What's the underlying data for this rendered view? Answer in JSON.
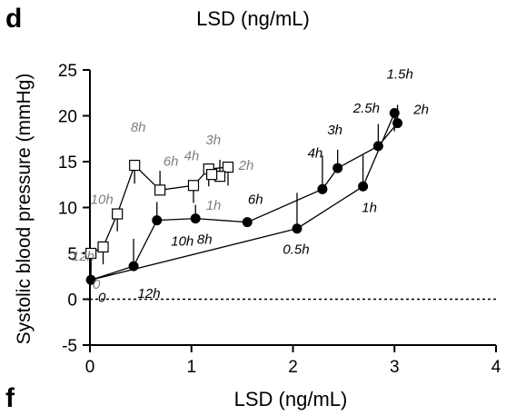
{
  "panel_letters": {
    "top": "d",
    "bottom": "f"
  },
  "chart_data": {
    "type": "line",
    "title": "LSD (ng/mL)",
    "xlabel": "LSD (ng/mL)",
    "ylabel": "Systolic blood pressure (mmHg)",
    "xlim": [
      0,
      4
    ],
    "ylim": [
      -5,
      25
    ],
    "xticks": [
      0,
      1,
      2,
      3,
      4
    ],
    "yticks": [
      -5,
      0,
      5,
      10,
      15,
      20,
      25
    ],
    "grid": false,
    "reference_line": {
      "y": 0,
      "style": "dashed"
    },
    "series_colors": {
      "open": "#7f7f7f",
      "filled": "#000000"
    },
    "series": [
      {
        "marker": "open-square",
        "points": [
          {
            "x": 0.01,
            "y": 5.0,
            "label": "0"
          },
          {
            "x": 0.13,
            "y": 5.7,
            "label": "12h"
          },
          {
            "x": 0.27,
            "y": 9.3,
            "label": "10h"
          },
          {
            "x": 0.44,
            "y": 14.6,
            "label": "8h"
          },
          {
            "x": 0.69,
            "y": 11.9,
            "label": "6h"
          },
          {
            "x": 1.02,
            "y": 12.4,
            "label": "4h"
          },
          {
            "x": 1.17,
            "y": 14.2,
            "label": "3h"
          },
          {
            "x": 1.36,
            "y": 14.4,
            "label": "2h"
          },
          {
            "x": 1.28,
            "y": 13.4,
            "label": "1h"
          },
          {
            "x": 1.2,
            "y": 13.6,
            "label": ""
          }
        ]
      },
      {
        "marker": "filled-circle",
        "points": [
          {
            "x": 0.01,
            "y": 2.1,
            "label": "0"
          },
          {
            "x": 0.43,
            "y": 3.6,
            "label": "12h"
          },
          {
            "x": 0.66,
            "y": 8.6,
            "label": "10h"
          },
          {
            "x": 1.04,
            "y": 8.8,
            "label": "8h"
          },
          {
            "x": 1.55,
            "y": 8.4,
            "label": "6h"
          },
          {
            "x": 2.29,
            "y": 12.0,
            "label": "4h"
          },
          {
            "x": 2.44,
            "y": 14.3,
            "label": "3h"
          },
          {
            "x": 2.84,
            "y": 16.7,
            "label": "2.5h"
          },
          {
            "x": 3.03,
            "y": 19.2,
            "label": "2h"
          },
          {
            "x": 3.0,
            "y": 20.3,
            "label": "1.5h"
          },
          {
            "x": 2.69,
            "y": 12.3,
            "label": "1h"
          },
          {
            "x": 2.04,
            "y": 7.7,
            "label": "0.5h"
          }
        ],
        "closed": true
      }
    ],
    "error_bars": [
      {
        "series": 0,
        "point": 0,
        "y2": 3.2
      },
      {
        "series": 0,
        "point": 1,
        "y2": 3.8
      },
      {
        "series": 0,
        "point": 2,
        "y2": 7.4
      },
      {
        "series": 0,
        "point": 3,
        "y2": 12.6
      },
      {
        "series": 0,
        "point": 4,
        "y2": 14.0
      },
      {
        "series": 0,
        "point": 5,
        "y2": 10.5
      },
      {
        "series": 0,
        "point": 6,
        "y2": 12.3
      },
      {
        "series": 0,
        "point": 7,
        "y2": 12.4
      },
      {
        "series": 0,
        "point": 8,
        "y2": 15.2
      },
      {
        "series": 1,
        "point": 0,
        "y2": 4.1
      },
      {
        "series": 1,
        "point": 1,
        "y2": 6.6
      },
      {
        "series": 1,
        "point": 2,
        "y2": 10.6
      },
      {
        "series": 1,
        "point": 3,
        "y2": 10.3
      },
      {
        "series": 1,
        "point": 5,
        "y2": 15.7
      },
      {
        "series": 1,
        "point": 6,
        "y2": 16.3
      },
      {
        "series": 1,
        "point": 7,
        "y2": 19.1
      },
      {
        "series": 1,
        "point": 8,
        "y2": 21.2
      },
      {
        "series": 1,
        "point": 9,
        "y2": 18.3
      },
      {
        "series": 1,
        "point": 10,
        "y2": 15.7
      },
      {
        "series": 1,
        "point": 11,
        "y2": 11.6
      }
    ]
  }
}
